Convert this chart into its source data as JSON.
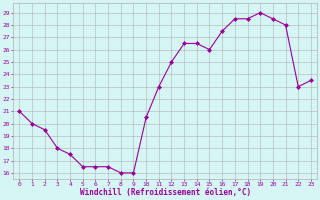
{
  "x": [
    0,
    1,
    2,
    3,
    4,
    5,
    6,
    7,
    8,
    9,
    10,
    11,
    12,
    13,
    14,
    15,
    16,
    17,
    18,
    19,
    20,
    21,
    22,
    23
  ],
  "y": [
    21,
    20,
    19.5,
    18,
    17.5,
    16.5,
    16.5,
    16.5,
    16,
    16,
    20.5,
    23,
    25,
    26.5,
    26.5,
    26,
    27.5,
    28.5,
    28.5,
    29,
    28.5,
    28,
    23,
    23.5
  ],
  "line_color": "#990099",
  "marker": "D",
  "marker_size": 2,
  "bg_color": "#d6f5f5",
  "grid_color": "#b0b0b0",
  "xlabel": "Windchill (Refroidissement éolien,°C)",
  "xlabel_color": "#990099",
  "ylabel_ticks": [
    16,
    17,
    18,
    19,
    20,
    21,
    22,
    23,
    24,
    25,
    26,
    27,
    28,
    29
  ],
  "xticks": [
    0,
    1,
    2,
    3,
    4,
    5,
    6,
    7,
    8,
    9,
    10,
    11,
    12,
    13,
    14,
    15,
    16,
    17,
    18,
    19,
    20,
    21,
    22,
    23
  ],
  "ylim": [
    15.5,
    29.8
  ],
  "xlim": [
    -0.5,
    23.5
  ]
}
